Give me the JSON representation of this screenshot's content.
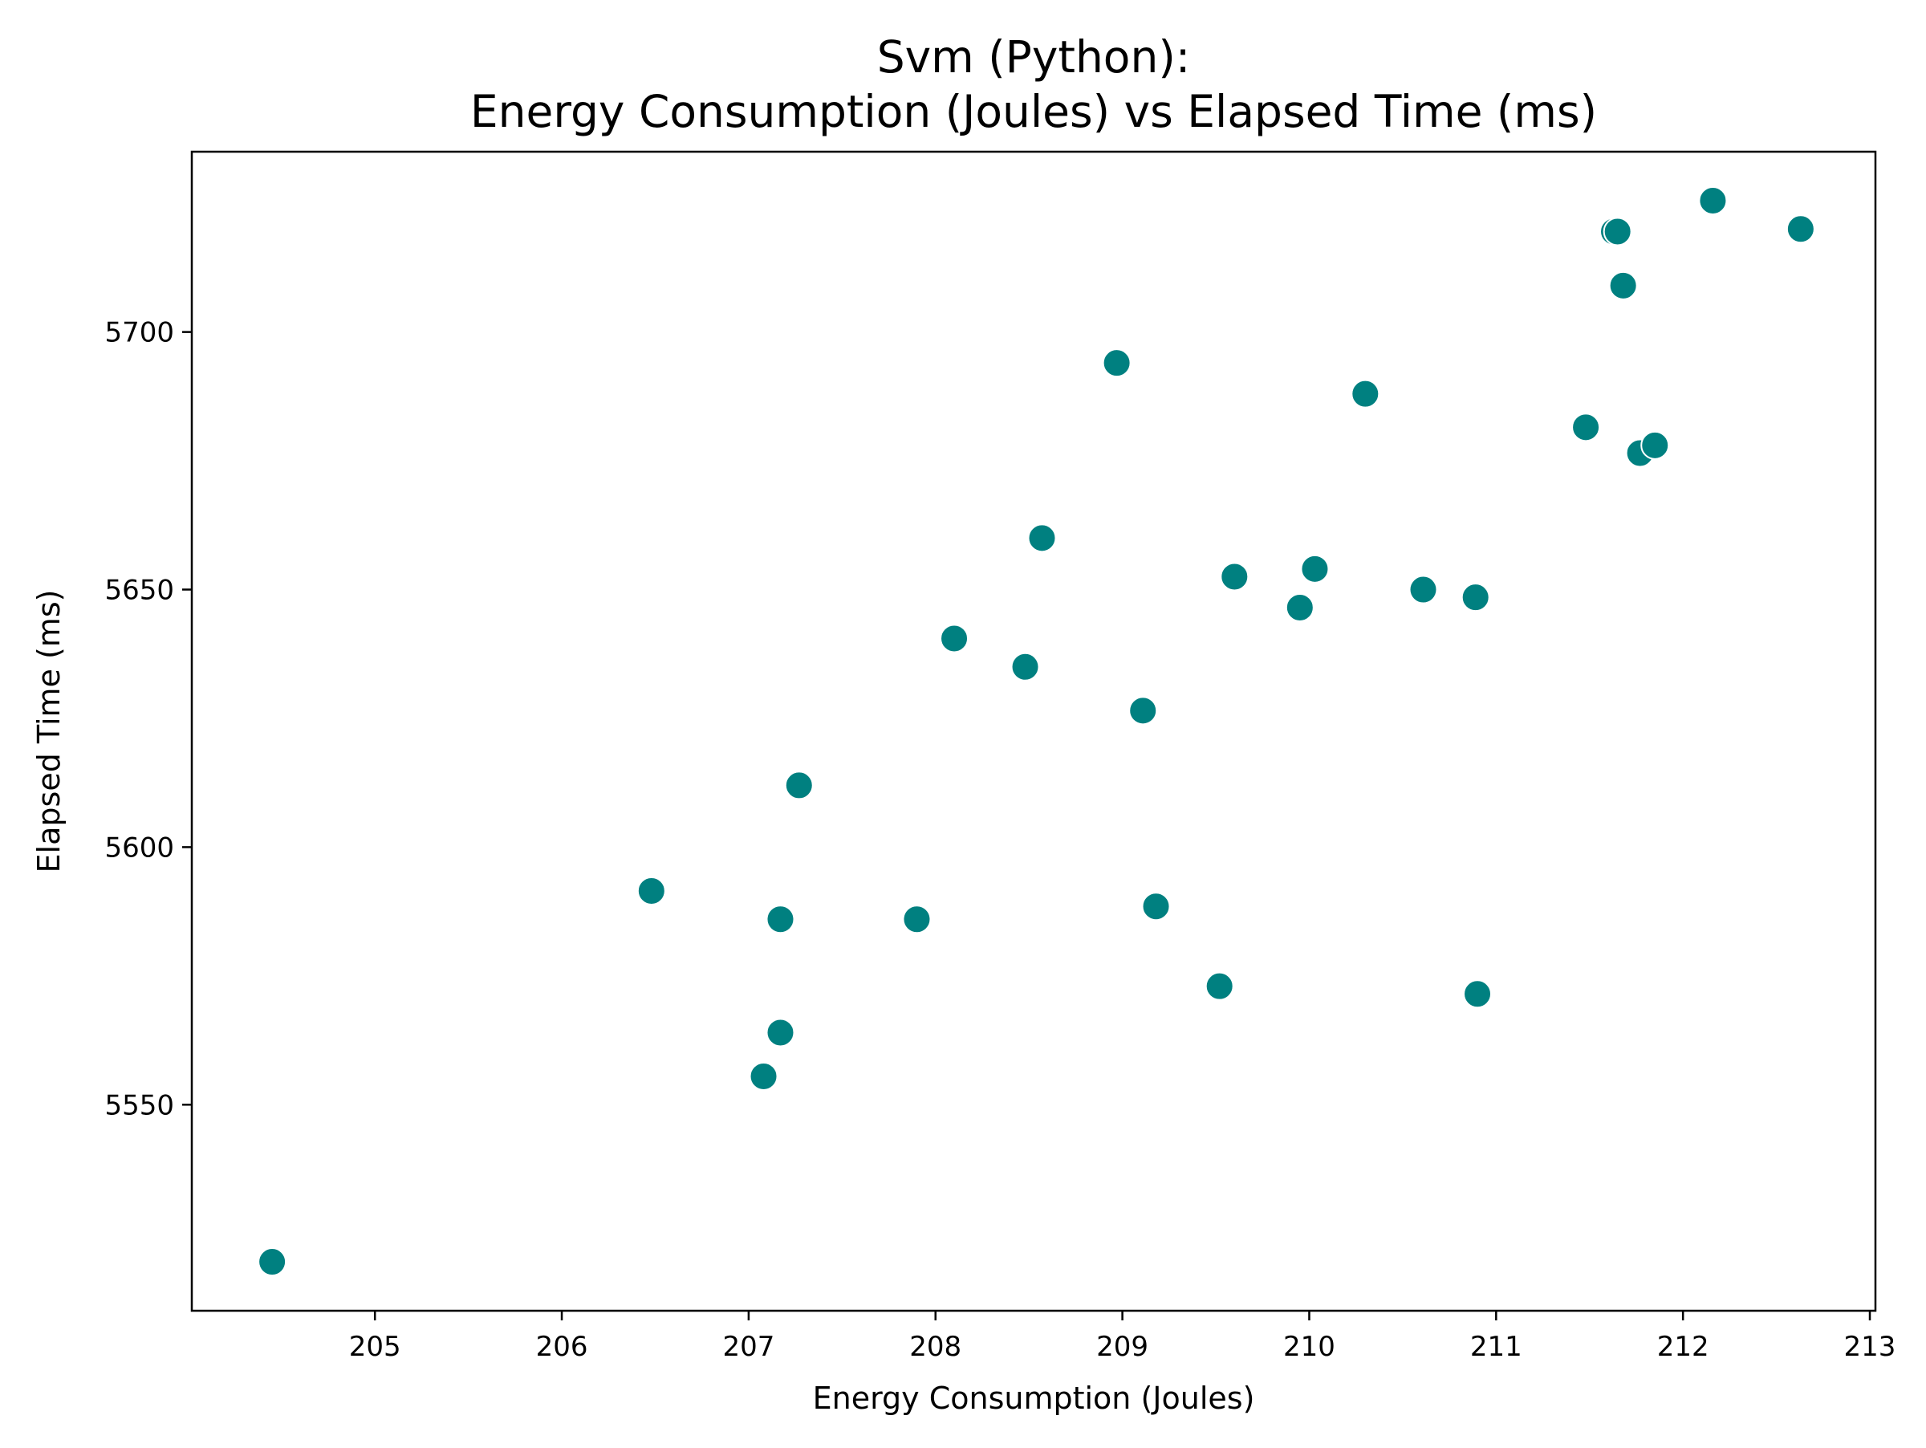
{
  "chart_data": {
    "type": "scatter",
    "title_line1": "Svm (Python):",
    "title_line2": "Energy Consumption (Joules) vs Elapsed Time (ms)",
    "xlabel": "Energy Consumption (Joules)",
    "ylabel": "Elapsed Time (ms)",
    "xlim": [
      204.02,
      213.03
    ],
    "ylim": [
      5510,
      5735
    ],
    "xticks": [
      205,
      206,
      207,
      208,
      209,
      210,
      211,
      212,
      213
    ],
    "yticks": [
      5550,
      5600,
      5650,
      5700
    ],
    "grid": false,
    "legend": "none",
    "marker_color": "#008080",
    "points": [
      {
        "x": 204.45,
        "y": 5519.5
      },
      {
        "x": 206.48,
        "y": 5591.5
      },
      {
        "x": 207.08,
        "y": 5555.5
      },
      {
        "x": 207.17,
        "y": 5564.0
      },
      {
        "x": 207.17,
        "y": 5586.0
      },
      {
        "x": 207.27,
        "y": 5612.0
      },
      {
        "x": 207.9,
        "y": 5586.0
      },
      {
        "x": 208.1,
        "y": 5640.5
      },
      {
        "x": 208.48,
        "y": 5635.0
      },
      {
        "x": 208.57,
        "y": 5660.0
      },
      {
        "x": 208.97,
        "y": 5694.0
      },
      {
        "x": 209.11,
        "y": 5626.5
      },
      {
        "x": 209.18,
        "y": 5588.5
      },
      {
        "x": 209.52,
        "y": 5573.0
      },
      {
        "x": 209.6,
        "y": 5652.5
      },
      {
        "x": 209.95,
        "y": 5646.5
      },
      {
        "x": 210.03,
        "y": 5654.0
      },
      {
        "x": 210.3,
        "y": 5688.0
      },
      {
        "x": 210.61,
        "y": 5650.0
      },
      {
        "x": 210.89,
        "y": 5648.5
      },
      {
        "x": 210.9,
        "y": 5571.5
      },
      {
        "x": 211.48,
        "y": 5681.5
      },
      {
        "x": 211.63,
        "y": 5719.5
      },
      {
        "x": 211.65,
        "y": 5719.5
      },
      {
        "x": 211.68,
        "y": 5709.0
      },
      {
        "x": 211.77,
        "y": 5676.5
      },
      {
        "x": 211.85,
        "y": 5678.0
      },
      {
        "x": 212.16,
        "y": 5725.5
      },
      {
        "x": 212.63,
        "y": 5720.0
      }
    ]
  }
}
